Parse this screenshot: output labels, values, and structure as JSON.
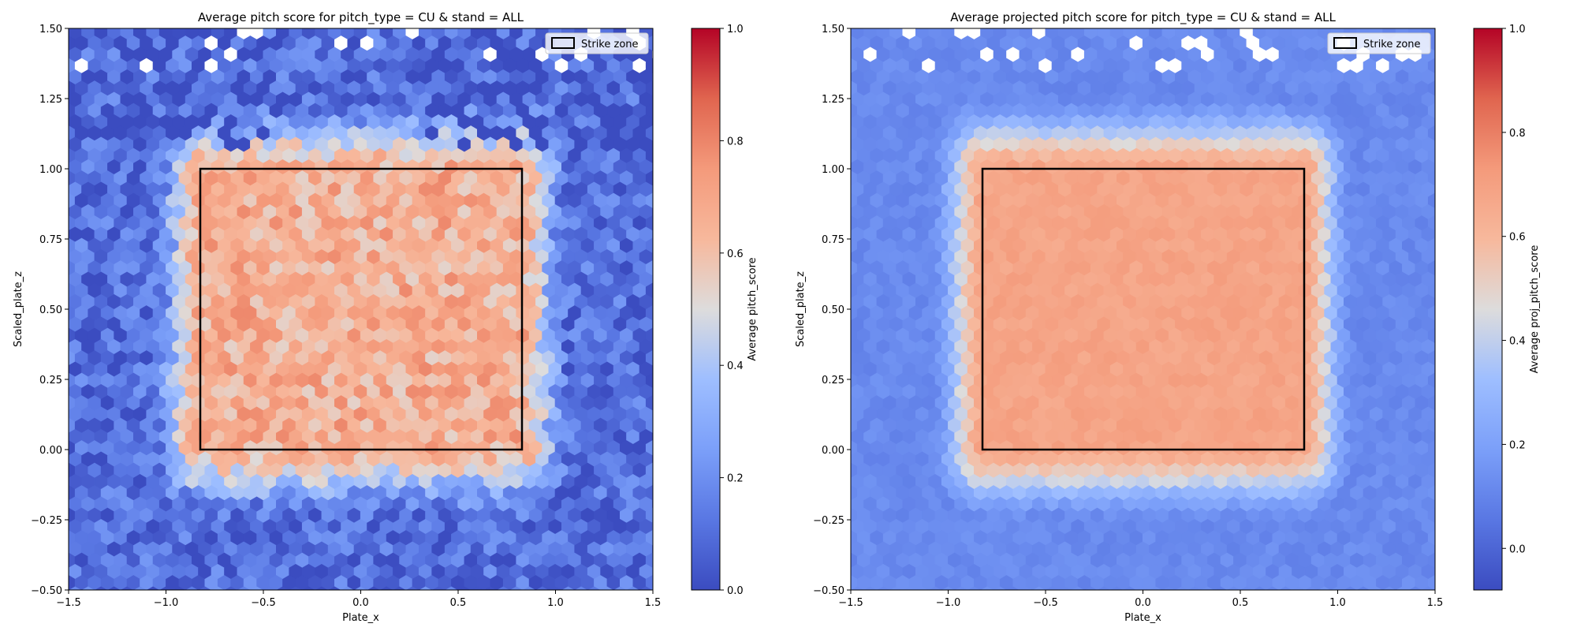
{
  "chart_data": [
    {
      "type": "heatmap",
      "subtype": "hexbin",
      "title": "Average pitch score for pitch_type = CU & stand = ALL",
      "xlabel": "Plate_x",
      "ylabel": "Scaled_plate_z",
      "xlim": [
        -1.5,
        1.5
      ],
      "ylim": [
        -0.5,
        1.5
      ],
      "x_ticks": [
        -1.5,
        -1.0,
        -0.5,
        0.0,
        0.5,
        1.0,
        1.5
      ],
      "x_tick_labels": [
        "−1.5",
        "−1.0",
        "−0.5",
        "0.0",
        "0.5",
        "1.0",
        "1.5"
      ],
      "y_ticks": [
        -0.5,
        -0.25,
        0.0,
        0.25,
        0.5,
        0.75,
        1.0,
        1.25,
        1.5
      ],
      "y_tick_labels": [
        "−0.50",
        "−0.25",
        "0.00",
        "0.25",
        "0.50",
        "0.75",
        "1.00",
        "1.25",
        "1.50"
      ],
      "colorbar": {
        "label": "Average pitch_score",
        "min": 0.0,
        "max": 1.0,
        "ticks": [
          0.0,
          0.2,
          0.4,
          0.6,
          0.8,
          1.0
        ],
        "tick_labels": [
          "0.0",
          "0.2",
          "0.4",
          "0.6",
          "0.8",
          "1.0"
        ],
        "colormap": "coolwarm"
      },
      "strike_zone": {
        "x0": -0.83,
        "x1": 0.83,
        "z0": 0.0,
        "z1": 1.0
      },
      "legend": {
        "label": "Strike zone",
        "position": "top-right"
      },
      "field": {
        "inside": 0.68,
        "outside": 0.1,
        "noise": 0.13
      },
      "grid": false
    },
    {
      "type": "heatmap",
      "subtype": "hexbin",
      "title": "Average projected pitch score for pitch_type = CU & stand = ALL",
      "xlabel": "Plate_x",
      "ylabel": "Scaled_plate_z",
      "xlim": [
        -1.5,
        1.5
      ],
      "ylim": [
        -0.5,
        1.5
      ],
      "x_ticks": [
        -1.5,
        -1.0,
        -0.5,
        0.0,
        0.5,
        1.0,
        1.5
      ],
      "x_tick_labels": [
        "−1.5",
        "−1.0",
        "−0.5",
        "0.0",
        "0.5",
        "1.0",
        "1.5"
      ],
      "y_ticks": [
        -0.5,
        -0.25,
        0.0,
        0.25,
        0.5,
        0.75,
        1.0,
        1.25,
        1.5
      ],
      "y_tick_labels": [
        "−0.50",
        "−0.25",
        "0.00",
        "0.25",
        "0.50",
        "0.75",
        "1.00",
        "1.25",
        "1.50"
      ],
      "colorbar": {
        "label": "Average proj_pitch_score",
        "min": -0.08,
        "max": 1.0,
        "ticks": [
          0.0,
          0.2,
          0.4,
          0.6,
          0.8,
          1.0
        ],
        "tick_labels": [
          "0.0",
          "0.2",
          "0.4",
          "0.6",
          "0.8",
          "1.0"
        ],
        "colormap": "coolwarm"
      },
      "strike_zone": {
        "x0": -0.83,
        "x1": 0.83,
        "z0": 0.0,
        "z1": 1.0
      },
      "legend": {
        "label": "Strike zone",
        "position": "top-right"
      },
      "field": {
        "inside": 0.7,
        "outside": 0.12,
        "noise": 0.035
      },
      "grid": false
    }
  ]
}
